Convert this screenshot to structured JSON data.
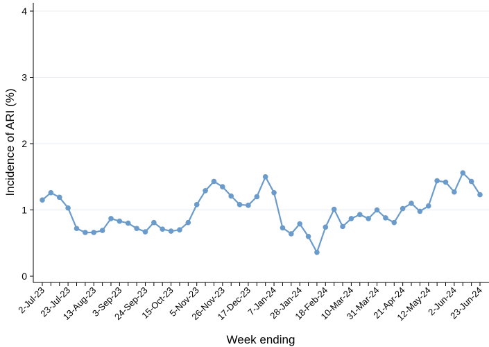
{
  "chart_data": {
    "type": "line",
    "xlabel": "Week ending",
    "ylabel": "Incidence of ARI (%)",
    "ylim": [
      0,
      4
    ],
    "yticks": [
      0,
      1,
      2,
      3,
      4
    ],
    "grid": "horizontal",
    "tick_labels": [
      "2-Jul-23",
      "23-Jul-23",
      "13-Aug-23",
      "3-Sep-23",
      "24-Sep-23",
      "15-Oct-23",
      "5-Nov-23",
      "26-Nov-23",
      "17-Dec-23",
      "7-Jan-24",
      "28-Jan-24",
      "18-Feb-24",
      "10-Mar-24",
      "31-Mar-24",
      "21-Apr-24",
      "12-May-24",
      "2-Jun-24",
      "23-Jun-24"
    ],
    "line_color": "#6a9bcb",
    "series": [
      {
        "values": [
          1.15,
          1.26,
          1.19,
          1.03,
          0.72,
          0.66,
          0.66,
          0.69,
          0.87,
          0.83,
          0.8,
          0.72,
          0.67,
          0.81,
          0.71,
          0.68,
          0.7,
          0.81,
          1.08,
          1.29,
          1.43,
          1.35,
          1.21,
          1.08,
          1.07,
          1.2,
          1.5,
          1.26,
          0.73,
          0.64,
          0.79,
          0.6,
          0.36,
          0.74,
          1.01,
          0.75,
          0.87,
          0.93,
          0.87,
          1.0,
          0.88,
          0.81,
          1.02,
          1.1,
          0.98,
          1.06,
          1.44,
          1.42,
          1.27,
          1.56,
          1.43,
          1.23
        ]
      }
    ]
  }
}
